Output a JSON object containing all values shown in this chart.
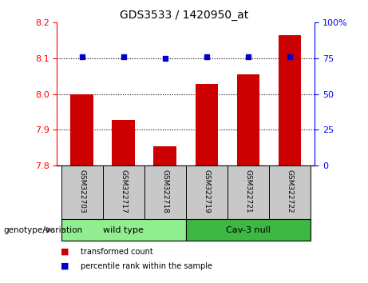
{
  "title": "GDS3533 / 1420950_at",
  "samples": [
    "GSM322703",
    "GSM322717",
    "GSM322718",
    "GSM322719",
    "GSM322721",
    "GSM322722"
  ],
  "bar_values": [
    8.0,
    7.928,
    7.855,
    8.028,
    8.055,
    8.165
  ],
  "percentile_values": [
    76,
    76,
    75,
    76,
    76,
    76
  ],
  "groups": [
    {
      "label": "wild type",
      "indices": [
        0,
        1,
        2
      ],
      "color": "#90EE90"
    },
    {
      "label": "Cav-3 null",
      "indices": [
        3,
        4,
        5
      ],
      "color": "#3CB843"
    }
  ],
  "bar_color": "#CC0000",
  "percentile_color": "#0000CC",
  "ylim_left": [
    7.8,
    8.2
  ],
  "ylim_right": [
    0,
    100
  ],
  "yticks_left": [
    7.8,
    7.9,
    8.0,
    8.1,
    8.2
  ],
  "yticks_right": [
    0,
    25,
    50,
    75,
    100
  ],
  "grid_values": [
    7.9,
    8.0,
    8.1
  ],
  "legend_items": [
    {
      "label": "transformed count",
      "color": "#CC0000"
    },
    {
      "label": "percentile rank within the sample",
      "color": "#0000CC"
    }
  ],
  "genotype_label": "genotype/variation",
  "bar_bottom": 7.8,
  "label_bg": "#C8C8C8",
  "group1_color": "#90EE90",
  "group2_color": "#3CB843"
}
